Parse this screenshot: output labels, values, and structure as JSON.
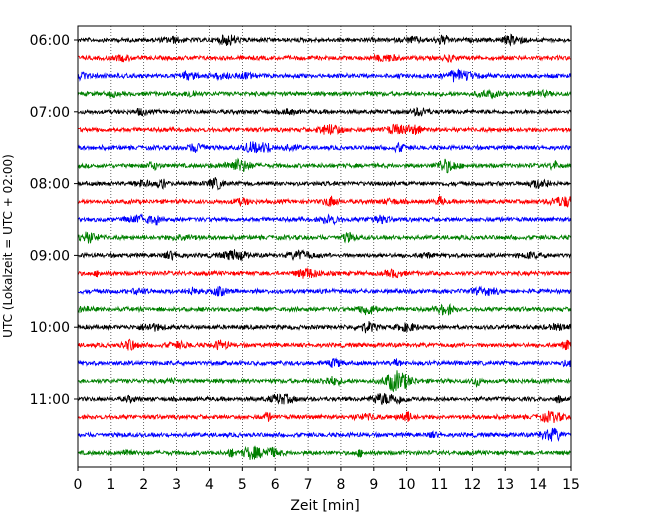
{
  "chart_data": {
    "type": "line",
    "title": "",
    "xlabel": "Zeit  [min]",
    "ylabel": "UTC (Lokalzeit = UTC + 02:00)",
    "xlim": [
      0,
      15
    ],
    "xticks": [
      0,
      1,
      2,
      3,
      4,
      5,
      6,
      7,
      8,
      9,
      10,
      11,
      12,
      13,
      14,
      15
    ],
    "xtick_labels": [
      "0",
      "1",
      "2",
      "3",
      "4",
      "5",
      "6",
      "7",
      "8",
      "9",
      "10",
      "11",
      "12",
      "13",
      "14",
      "15"
    ],
    "yticks": [
      {
        "time": "06:00",
        "label": "06:00"
      },
      {
        "time": "07:00",
        "label": "07:00"
      },
      {
        "time": "08:00",
        "label": "08:00"
      },
      {
        "time": "09:00",
        "label": "09:00"
      },
      {
        "time": "10:00",
        "label": "10:00"
      },
      {
        "time": "11:00",
        "label": "11:00"
      }
    ],
    "grid": "vertical-dotted",
    "trace_interval_min": 15,
    "trace_colors_cycle": [
      "#000000",
      "#ff0000",
      "#0000ff",
      "#008000"
    ],
    "traces": [
      {
        "start": "06:00",
        "color": "#000000"
      },
      {
        "start": "06:15",
        "color": "#ff0000"
      },
      {
        "start": "06:30",
        "color": "#0000ff"
      },
      {
        "start": "06:45",
        "color": "#008000"
      },
      {
        "start": "07:00",
        "color": "#000000"
      },
      {
        "start": "07:15",
        "color": "#ff0000"
      },
      {
        "start": "07:30",
        "color": "#0000ff"
      },
      {
        "start": "07:45",
        "color": "#008000"
      },
      {
        "start": "08:00",
        "color": "#000000"
      },
      {
        "start": "08:15",
        "color": "#ff0000"
      },
      {
        "start": "08:30",
        "color": "#0000ff"
      },
      {
        "start": "08:45",
        "color": "#008000"
      },
      {
        "start": "09:00",
        "color": "#000000"
      },
      {
        "start": "09:15",
        "color": "#ff0000"
      },
      {
        "start": "09:30",
        "color": "#0000ff"
      },
      {
        "start": "09:45",
        "color": "#008000"
      },
      {
        "start": "10:00",
        "color": "#000000"
      },
      {
        "start": "10:15",
        "color": "#ff0000"
      },
      {
        "start": "10:30",
        "color": "#0000ff"
      },
      {
        "start": "10:45",
        "color": "#008000"
      },
      {
        "start": "11:00",
        "color": "#000000"
      },
      {
        "start": "11:15",
        "color": "#ff0000"
      },
      {
        "start": "11:30",
        "color": "#0000ff"
      },
      {
        "start": "11:45",
        "color": "#008000"
      }
    ]
  }
}
